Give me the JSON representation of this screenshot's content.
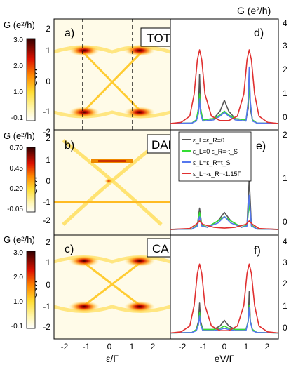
{
  "figure": {
    "right_axis_title": "G (e²/h)",
    "bottom_left_xlabel": "ε/Γ",
    "bottom_right_xlabel": "eV/Γ"
  },
  "panels": [
    {
      "id": "a",
      "label": "a)",
      "title": "TOTAL",
      "colorbar_title": "G (e²/h)",
      "colorbar_ticks": [
        "3.0",
        "2.0",
        "1.0",
        "-0.1"
      ],
      "ylabel": "eV/Γ",
      "yticks": [
        "2",
        "1",
        "0",
        "-1",
        "-2"
      ]
    },
    {
      "id": "b",
      "label": "b)",
      "title": "DAR",
      "colorbar_title": "G (e²/h)",
      "colorbar_ticks": [
        "0.70",
        "0.45",
        "0.20",
        "-0.05"
      ],
      "ylabel": "eV/Γ",
      "yticks": [
        "2",
        "1",
        "0",
        "-1",
        "-2"
      ]
    },
    {
      "id": "c",
      "label": "c)",
      "title": "CAR",
      "colorbar_title": "G (e²/h)",
      "colorbar_ticks": [
        "3.0",
        "2.0",
        "1.0",
        "-0.1"
      ],
      "ylabel": "eV/Γ",
      "yticks": [
        "2",
        "1",
        "0",
        "-1",
        "-2"
      ]
    }
  ],
  "line_panels": [
    {
      "id": "d",
      "label": "d)",
      "yticks": [
        "4",
        "3",
        "2",
        "1",
        "0"
      ]
    },
    {
      "id": "e",
      "label": "e)",
      "yticks": [
        "2",
        "1",
        "0"
      ]
    },
    {
      "id": "f",
      "label": "f)",
      "yticks": [
        "4",
        "3",
        "2",
        "1",
        "0"
      ]
    }
  ],
  "x_ticks": [
    "-2",
    "-1",
    "0",
    "1",
    "2"
  ],
  "legend": [
    {
      "label": "ε_L=ε_R=0",
      "color": "#555555"
    },
    {
      "label": "ε_L=0 ε_R=-t_S",
      "color": "#33dd33"
    },
    {
      "label": "ε_L=ε_R=t_S",
      "color": "#5577ee"
    },
    {
      "label": "ε_L=-ε_R=-1.15Γ",
      "color": "#e03030"
    }
  ],
  "chart_data": [
    {
      "type": "heatmap",
      "panel": "a",
      "xlabel": "ε/Γ",
      "ylabel": "eV/Γ",
      "xlim": [
        -2.5,
        2.5
      ],
      "ylim": [
        -2.5,
        2.5
      ],
      "zlim": [
        -0.1,
        3.0
      ],
      "colormap": "hot",
      "dashed_vertical_lines_x": [
        -1.15,
        1.15
      ],
      "peaks": [
        {
          "x": -1.15,
          "y": 1.1,
          "z": 3.0
        },
        {
          "x": 1.15,
          "y": 1.1,
          "z": 3.0
        },
        {
          "x": -1.15,
          "y": -1.1,
          "z": 3.0
        },
        {
          "x": 1.15,
          "y": -1.1,
          "z": 3.0
        }
      ]
    },
    {
      "type": "heatmap",
      "panel": "b",
      "xlabel": "ε/Γ",
      "ylabel": "eV/Γ",
      "xlim": [
        -2.5,
        2.5
      ],
      "ylim": [
        -2.5,
        2.5
      ],
      "zlim": [
        -0.05,
        0.7
      ],
      "colormap": "hot"
    },
    {
      "type": "heatmap",
      "panel": "c",
      "xlabel": "ε/Γ",
      "ylabel": "eV/Γ",
      "xlim": [
        -2.5,
        2.5
      ],
      "ylim": [
        -2.5,
        2.5
      ],
      "zlim": [
        -0.1,
        3.0
      ],
      "colormap": "hot"
    },
    {
      "type": "line",
      "panel": "d",
      "xlabel": "eV/Γ",
      "ylabel": "G (e²/h)",
      "xlim": [
        -2.5,
        2.5
      ],
      "ylim": [
        -0.2,
        4.2
      ],
      "series": [
        {
          "name": "ε_L=ε_R=0",
          "color": "#555555",
          "x": [
            -2.5,
            -1.5,
            -1.3,
            -1.2,
            -1.15,
            -1.1,
            -1.0,
            -0.5,
            -0.2,
            0,
            0.2,
            0.5,
            1.0,
            1.1,
            1.15,
            1.2,
            1.3,
            1.5,
            2.5
          ],
          "y": [
            0,
            0.02,
            0.15,
            0.6,
            2.0,
            0.6,
            0.15,
            0.2,
            0.5,
            0.95,
            0.5,
            0.2,
            0.15,
            0.6,
            2.0,
            0.6,
            0.15,
            0.02,
            0
          ]
        },
        {
          "name": "ε_L=0 ε_R=-t_S",
          "color": "#33dd33",
          "x": [
            -2.5,
            -1.5,
            -1.3,
            -1.2,
            -1.15,
            -1.1,
            -1.0,
            -0.5,
            -0.2,
            0,
            0.2,
            0.5,
            1.0,
            1.1,
            1.15,
            1.2,
            1.3,
            1.5,
            2.5
          ],
          "y": [
            0,
            0.02,
            0.15,
            0.6,
            1.2,
            0.6,
            0.15,
            0.2,
            0.35,
            0.5,
            0.35,
            0.2,
            0.15,
            0.8,
            1.6,
            0.8,
            0.15,
            0.02,
            0
          ]
        },
        {
          "name": "ε_L=ε_R=t_S",
          "color": "#5577ee",
          "x": [
            -2.5,
            -1.5,
            -1.3,
            -1.2,
            -1.15,
            -1.1,
            -1.0,
            -0.5,
            -0.2,
            0,
            0.2,
            0.5,
            1.0,
            1.1,
            1.15,
            1.2,
            1.3,
            1.5,
            2.5
          ],
          "y": [
            0,
            0.02,
            0.1,
            0.4,
            1.0,
            0.4,
            0.1,
            0.15,
            0.3,
            0.45,
            0.3,
            0.15,
            0.1,
            0.9,
            2.3,
            0.9,
            0.1,
            0.02,
            0
          ]
        },
        {
          "name": "ε_L=-ε_R=-1.15Γ",
          "color": "#e03030",
          "x": [
            -2.5,
            -2.0,
            -1.6,
            -1.4,
            -1.25,
            -1.15,
            -1.05,
            -0.9,
            -0.6,
            -0.2,
            0,
            0.2,
            0.6,
            0.9,
            1.05,
            1.15,
            1.25,
            1.4,
            1.6,
            2.0,
            2.5
          ],
          "y": [
            0,
            0.05,
            0.3,
            1.2,
            2.6,
            3.0,
            2.6,
            1.2,
            0.3,
            0.12,
            0.12,
            0.12,
            0.3,
            1.2,
            2.6,
            3.0,
            2.6,
            1.2,
            0.3,
            0.05,
            0
          ]
        }
      ]
    },
    {
      "type": "line",
      "panel": "e",
      "xlabel": "eV/Γ",
      "ylabel": "G (e²/h)",
      "xlim": [
        -2.5,
        2.5
      ],
      "ylim": [
        -0.1,
        2.3
      ],
      "series": [
        {
          "name": "ε_L=ε_R=0",
          "color": "#555555",
          "x": [
            -2.5,
            -1.5,
            -1.25,
            -1.15,
            -1.05,
            -0.8,
            -0.3,
            0,
            0.3,
            0.8,
            1.05,
            1.15,
            1.25,
            1.5,
            2.5
          ],
          "y": [
            0,
            0.01,
            0.1,
            0.5,
            0.1,
            0.05,
            0.2,
            0.4,
            0.2,
            0.05,
            0.1,
            1.2,
            0.1,
            0.01,
            0
          ]
        },
        {
          "name": "ε_L=0 ε_R=-t_S",
          "color": "#33dd33",
          "x": [
            -2.5,
            -1.5,
            -1.25,
            -1.15,
            -1.05,
            -0.8,
            -0.3,
            0,
            0.3,
            0.8,
            1.05,
            1.15,
            1.25,
            1.5,
            2.5
          ],
          "y": [
            0,
            0.01,
            0.1,
            0.4,
            0.1,
            0.05,
            0.2,
            0.3,
            0.2,
            0.05,
            0.1,
            0.6,
            0.1,
            0.01,
            0
          ]
        },
        {
          "name": "ε_L=ε_R=t_S",
          "color": "#5577ee",
          "x": [
            -2.5,
            -1.5,
            -1.25,
            -1.15,
            -1.05,
            -0.8,
            -0.3,
            0,
            0.3,
            0.8,
            1.05,
            1.15,
            1.25,
            1.5,
            2.5
          ],
          "y": [
            0,
            0.01,
            0.08,
            0.3,
            0.08,
            0.05,
            0.15,
            0.3,
            0.15,
            0.05,
            0.08,
            0.8,
            0.08,
            0.01,
            0
          ]
        },
        {
          "name": "ε_L=-ε_R=-1.15Γ",
          "color": "#e03030",
          "x": [
            -2.5,
            -1.6,
            -1.3,
            -1.15,
            -1.0,
            -0.5,
            0,
            0.5,
            1.0,
            1.15,
            1.3,
            1.6,
            2.5
          ],
          "y": [
            0,
            0.02,
            0.12,
            0.2,
            0.12,
            0.05,
            0.03,
            0.05,
            0.12,
            0.2,
            0.12,
            0.02,
            0
          ]
        }
      ]
    },
    {
      "type": "line",
      "panel": "f",
      "xlabel": "eV/Γ",
      "ylabel": "G (e²/h)",
      "xlim": [
        -2.5,
        2.5
      ],
      "ylim": [
        -0.2,
        4.2
      ],
      "series": [
        {
          "name": "ε_L=ε_R=0",
          "color": "#555555",
          "x": [
            -2.5,
            -1.5,
            -1.3,
            -1.2,
            -1.15,
            -1.1,
            -1.0,
            -0.5,
            -0.2,
            0,
            0.2,
            0.5,
            1.0,
            1.1,
            1.15,
            1.2,
            1.3,
            1.5,
            2.5
          ],
          "y": [
            0,
            0.02,
            0.15,
            0.5,
            1.3,
            0.5,
            0.15,
            0.15,
            0.3,
            0.55,
            0.3,
            0.15,
            0.15,
            0.5,
            1.8,
            0.5,
            0.15,
            0.02,
            0
          ]
        },
        {
          "name": "ε_L=0 ε_R=-t_S",
          "color": "#33dd33",
          "x": [
            -2.5,
            -1.5,
            -1.3,
            -1.2,
            -1.15,
            -1.1,
            -1.0,
            -0.5,
            -0.2,
            0,
            0.2,
            0.5,
            1.0,
            1.1,
            1.15,
            1.2,
            1.3,
            1.5,
            2.5
          ],
          "y": [
            0,
            0.02,
            0.15,
            0.4,
            0.9,
            0.4,
            0.15,
            0.15,
            0.2,
            0.3,
            0.2,
            0.15,
            0.15,
            0.5,
            1.2,
            0.5,
            0.15,
            0.02,
            0
          ]
        },
        {
          "name": "ε_L=ε_R=t_S",
          "color": "#5577ee",
          "x": [
            -2.5,
            -1.5,
            -1.3,
            -1.2,
            -1.15,
            -1.1,
            -1.0,
            -0.5,
            -0.2,
            0,
            0.2,
            0.5,
            1.0,
            1.1,
            1.15,
            1.2,
            1.3,
            1.5,
            2.5
          ],
          "y": [
            0,
            0.02,
            0.1,
            0.35,
            0.75,
            0.35,
            0.1,
            0.1,
            0.15,
            0.2,
            0.15,
            0.1,
            0.1,
            0.5,
            1.1,
            0.5,
            0.1,
            0.02,
            0
          ]
        },
        {
          "name": "ε_L=-ε_R=-1.15Γ",
          "color": "#e03030",
          "x": [
            -2.5,
            -2.0,
            -1.6,
            -1.4,
            -1.25,
            -1.15,
            -1.05,
            -0.9,
            -0.6,
            -0.2,
            0,
            0.2,
            0.6,
            0.9,
            1.05,
            1.15,
            1.25,
            1.4,
            1.6,
            2.0,
            2.5
          ],
          "y": [
            0,
            0.05,
            0.3,
            1.2,
            2.6,
            3.0,
            2.6,
            1.2,
            0.3,
            0.1,
            0.1,
            0.1,
            0.3,
            1.2,
            2.6,
            3.0,
            2.6,
            1.2,
            0.3,
            0.05,
            0
          ]
        }
      ]
    }
  ]
}
